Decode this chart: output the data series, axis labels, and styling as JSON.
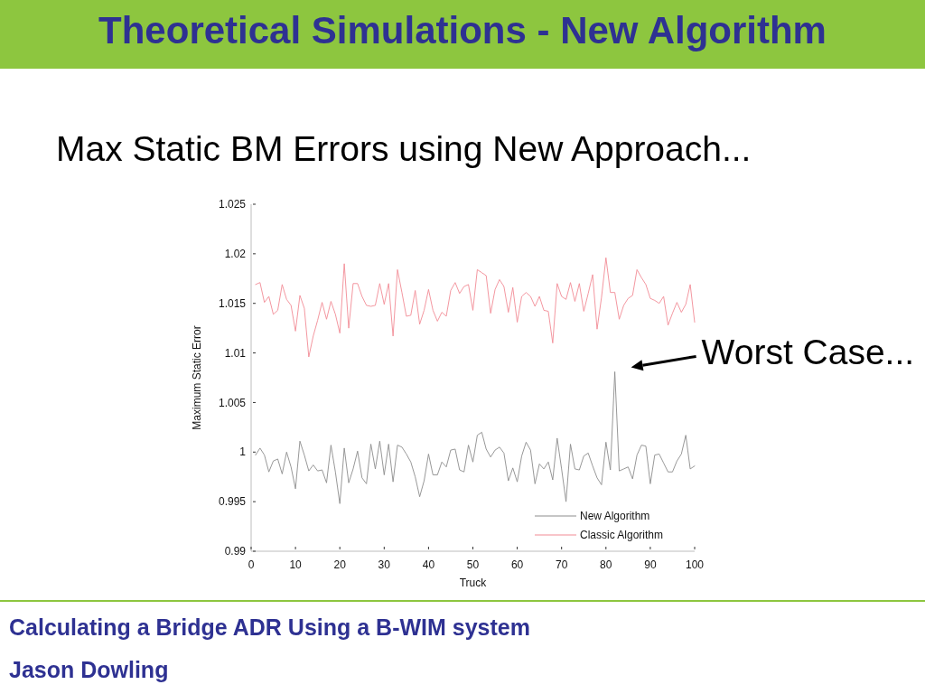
{
  "chart_data": {
    "type": "line",
    "title": "Theoretical Simulations - New Algorithm",
    "subtitle": "Max Static BM Errors using New Approach...",
    "xlabel": "Truck",
    "ylabel": "Maximum Static Error",
    "x": [
      1,
      2,
      3,
      4,
      5,
      6,
      7,
      8,
      9,
      10,
      11,
      12,
      13,
      14,
      15,
      16,
      17,
      18,
      19,
      20,
      21,
      22,
      23,
      24,
      25,
      26,
      27,
      28,
      29,
      30,
      31,
      32,
      33,
      34,
      35,
      36,
      37,
      38,
      39,
      40,
      41,
      42,
      43,
      44,
      45,
      46,
      47,
      48,
      49,
      50,
      51,
      52,
      53,
      54,
      55,
      56,
      57,
      58,
      59,
      60,
      61,
      62,
      63,
      64,
      65,
      66,
      67,
      68,
      69,
      70,
      71,
      72,
      73,
      74,
      75,
      76,
      77,
      78,
      79,
      80,
      81,
      82,
      83,
      84,
      85,
      86,
      87,
      88,
      89,
      90,
      91,
      92,
      93,
      94,
      95,
      96,
      97,
      98,
      99,
      100
    ],
    "series": [
      {
        "name": "New Algorithm",
        "color": "#8c8c8c",
        "values": [
          0.9997,
          1.0004,
          0.9997,
          0.998,
          0.9991,
          0.9993,
          0.9978,
          1.0,
          0.9985,
          0.9963,
          1.0011,
          0.9997,
          0.9981,
          0.9987,
          0.9981,
          0.9982,
          0.9969,
          1.0007,
          0.998,
          0.9948,
          1.0004,
          0.9969,
          0.9983,
          1.0001,
          0.9974,
          0.9968,
          1.0008,
          0.9983,
          1.0011,
          0.9977,
          1.0008,
          0.997,
          1.0007,
          1.0005,
          0.9998,
          0.999,
          0.9975,
          0.9955,
          0.9971,
          0.9998,
          0.9977,
          0.9977,
          0.999,
          0.9985,
          1.0002,
          1.0003,
          0.9982,
          0.998,
          1.0007,
          0.999,
          1.0017,
          1.002,
          1.0003,
          0.9995,
          1.0002,
          1.0005,
          0.9999,
          0.9971,
          0.9984,
          0.997,
          0.9996,
          1.001,
          1.0002,
          0.9968,
          0.9988,
          0.9983,
          0.999,
          0.9972,
          1.0014,
          0.9983,
          0.995,
          1.0008,
          0.9983,
          0.9982,
          0.9996,
          0.9999,
          0.9986,
          0.9974,
          0.9967,
          1.001,
          0.9982,
          1.0081,
          0.9981,
          0.9983,
          0.9985,
          0.9973,
          0.9997,
          1.0007,
          1.0006,
          0.9968,
          0.9997,
          0.9998,
          0.9989,
          0.998,
          0.998,
          0.9991,
          0.9998,
          1.0017,
          0.9983,
          0.9986
        ]
      },
      {
        "name": "Classic Algorithm",
        "color": "#f28b95",
        "values": [
          1.0169,
          1.0171,
          1.0151,
          1.0157,
          1.0139,
          1.0143,
          1.0169,
          1.0154,
          1.0148,
          1.0122,
          1.0158,
          1.0145,
          1.0096,
          1.0117,
          1.0133,
          1.0151,
          1.0134,
          1.0152,
          1.0139,
          1.012,
          1.019,
          1.0125,
          1.017,
          1.017,
          1.0157,
          1.0148,
          1.0147,
          1.0148,
          1.017,
          1.0149,
          1.017,
          1.0117,
          1.0184,
          1.0161,
          1.0137,
          1.0138,
          1.0163,
          1.0129,
          1.0143,
          1.0164,
          1.0143,
          1.0132,
          1.0141,
          1.0137,
          1.0163,
          1.0171,
          1.016,
          1.0167,
          1.0169,
          1.0143,
          1.0184,
          1.0181,
          1.0178,
          1.014,
          1.0164,
          1.0174,
          1.0167,
          1.0141,
          1.0166,
          1.0131,
          1.0157,
          1.0161,
          1.0157,
          1.0147,
          1.0157,
          1.0143,
          1.0142,
          1.011,
          1.017,
          1.0157,
          1.0154,
          1.0171,
          1.0152,
          1.017,
          1.0142,
          1.016,
          1.0179,
          1.0124,
          1.0156,
          1.0196,
          1.0161,
          1.0161,
          1.0134,
          1.0148,
          1.0155,
          1.0158,
          1.0184,
          1.0176,
          1.0169,
          1.0155,
          1.0153,
          1.015,
          1.0157,
          1.0128,
          1.014,
          1.0151,
          1.0141,
          1.0149,
          1.0169,
          1.0131
        ]
      }
    ],
    "xlim": [
      0,
      100
    ],
    "ylim": [
      0.99,
      1.025
    ],
    "xticks": [
      0,
      10,
      20,
      30,
      40,
      50,
      60,
      70,
      80,
      90,
      100
    ],
    "yticks": [
      0.99,
      0.995,
      1,
      1.005,
      1.01,
      1.015,
      1.02,
      1.025
    ],
    "legend": "bottom right",
    "line_style": "solid",
    "annotations": [
      {
        "text": "Worst Case...",
        "x": 82,
        "y": 1.0081
      },
      "Calculating a Bridge ADR Using a B-WIM system",
      "Jason Dowling"
    ]
  }
}
